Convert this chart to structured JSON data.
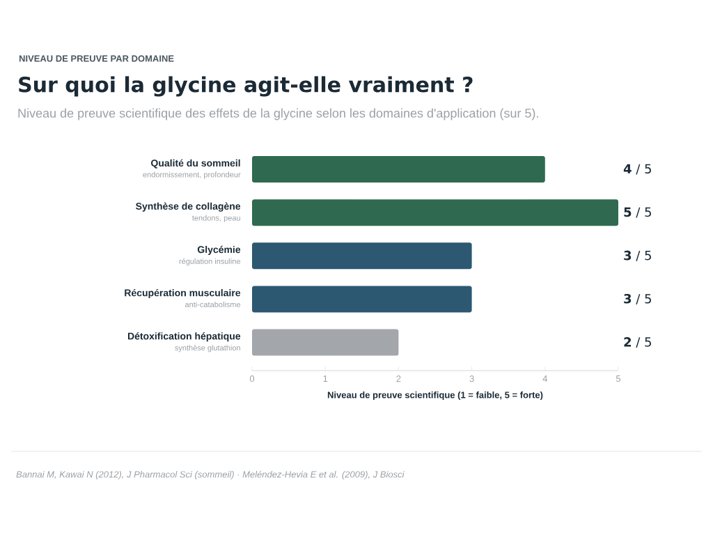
{
  "chart_data": {
    "type": "bar",
    "orientation": "horizontal",
    "title": "Sur quoi la glycine agit-elle vraiment ?",
    "subtitle": "Niveau de preuve scientifique des effets de la glycine selon les domaines d'application (sur 5).",
    "xlabel": "Niveau de preuve scientifique (1 = faible, 5 = forte)",
    "categories": [
      "Qualité du sommeil",
      "Synthèse de collagène",
      "Glycémie",
      "Récupération musculaire",
      "Détoxification hépatique"
    ],
    "values": [
      4,
      5,
      3,
      3,
      2
    ],
    "colors": [
      "#2f6a50",
      "#2f6a50",
      "#2c5872",
      "#2c5872",
      "#a3a6aa"
    ],
    "value_labels": [
      "**4** / 5",
      "**5** / 5",
      "**3** / 5",
      "**3** / 5",
      "**2** / 5"
    ],
    "xlim": [
      0,
      5
    ],
    "xticks": [
      0,
      1,
      2,
      3,
      4,
      5
    ],
    "grid": false,
    "annotations": [
      "NIVEAU DE PREUVE PAR DOMAINE",
      "endormissement, profondeur",
      "tendons, peau",
      "régulation insuline",
      "anti-catabolisme",
      "synthèse glutathion",
      "Bannai M, Kawai N (2012), J Pharmacol Sci (sommeil) · Meléndez-Hevia E et al. (2009), J Biosci"
    ]
  }
}
